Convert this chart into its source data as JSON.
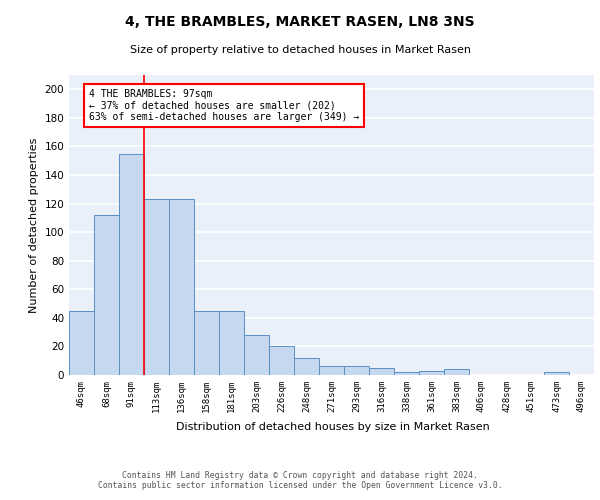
{
  "title": "4, THE BRAMBLES, MARKET RASEN, LN8 3NS",
  "subtitle": "Size of property relative to detached houses in Market Rasen",
  "xlabel": "Distribution of detached houses by size in Market Rasen",
  "ylabel": "Number of detached properties",
  "categories": [
    "46sqm",
    "68sqm",
    "91sqm",
    "113sqm",
    "136sqm",
    "158sqm",
    "181sqm",
    "203sqm",
    "226sqm",
    "248sqm",
    "271sqm",
    "293sqm",
    "316sqm",
    "338sqm",
    "361sqm",
    "383sqm",
    "406sqm",
    "428sqm",
    "451sqm",
    "473sqm",
    "496sqm"
  ],
  "values": [
    45,
    112,
    155,
    123,
    123,
    45,
    45,
    28,
    20,
    12,
    6,
    6,
    5,
    2,
    3,
    4,
    0,
    0,
    0,
    2,
    0
  ],
  "bar_color": "#c5d8f0",
  "bar_edge_color": "#5a8fc3",
  "background_color": "#eaf0fa",
  "grid_color": "#ffffff",
  "annotation_line_color": "red",
  "annotation_box_text": "4 THE BRAMBLES: 97sqm\n← 37% of detached houses are smaller (202)\n63% of semi-detached houses are larger (349) →",
  "ylim": [
    0,
    210
  ],
  "yticks": [
    0,
    20,
    40,
    60,
    80,
    100,
    120,
    140,
    160,
    180,
    200
  ],
  "footer": "Contains HM Land Registry data © Crown copyright and database right 2024.\nContains public sector information licensed under the Open Government Licence v3.0."
}
